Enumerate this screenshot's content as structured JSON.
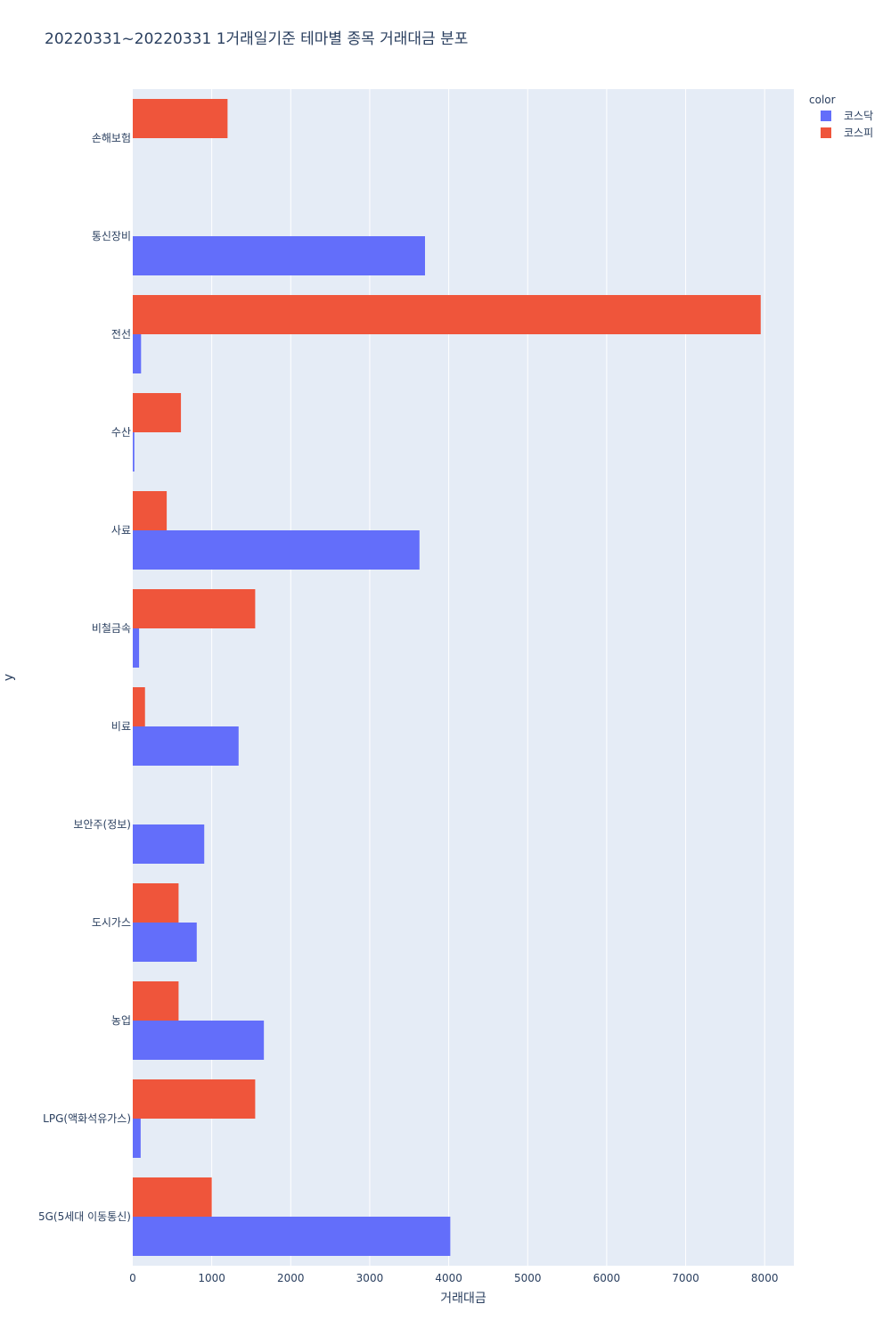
{
  "chart_data": {
    "type": "bar",
    "orientation": "horizontal",
    "barmode": "group",
    "title": "20220331~20220331 1거래일기준 테마별 종목 거래대금 분포",
    "xlabel": "거래대금",
    "ylabel": "y",
    "xlim": [
      0,
      8370
    ],
    "x_ticks": [
      0,
      1000,
      2000,
      3000,
      4000,
      5000,
      6000,
      7000,
      8000
    ],
    "x_tick_labels": [
      "0",
      "1000",
      "2000",
      "3000",
      "4000",
      "5000",
      "6000",
      "7000",
      "8000"
    ],
    "grid": true,
    "legend": {
      "title": "color",
      "placement": "top-right"
    },
    "categories": [
      "5G(5세대 이동통신)",
      "LPG(액화석유가스)",
      "농업",
      "도시가스",
      "보안주(정보)",
      "비료",
      "비철금속",
      "사료",
      "수산",
      "전선",
      "통신장비",
      "손해보험"
    ],
    "series": [
      {
        "name": "코스닥",
        "color": "#636efa",
        "values": [
          4020,
          100,
          1660,
          810,
          905,
          1340,
          80,
          3630,
          20,
          105,
          3700,
          null
        ]
      },
      {
        "name": "코스피",
        "color": "#ef553b",
        "values": [
          1000,
          1550,
          580,
          580,
          null,
          155,
          1550,
          430,
          610,
          7950,
          null,
          1200
        ]
      }
    ]
  }
}
